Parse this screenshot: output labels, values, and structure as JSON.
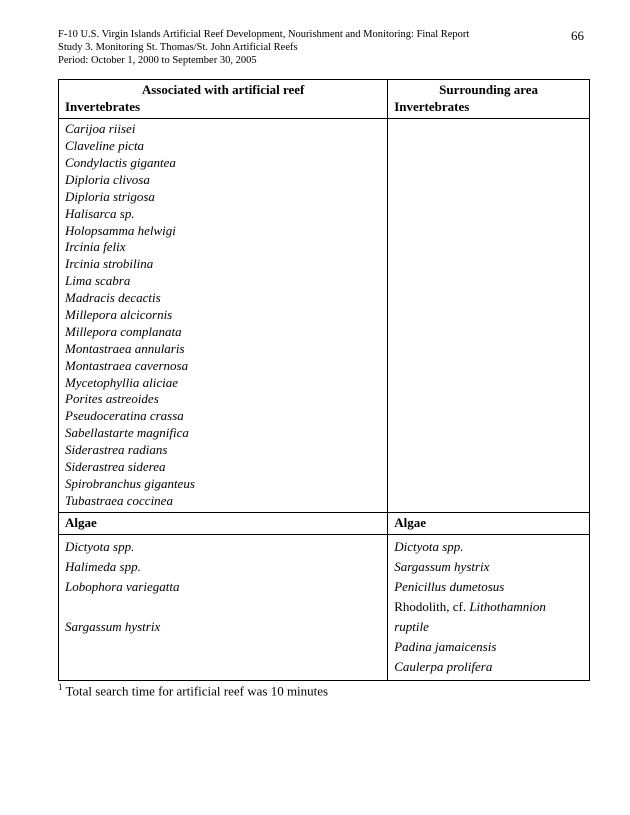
{
  "header": {
    "line1": "F-10 U.S. Virgin Islands Artificial Reef Development, Nourishment and Monitoring: Final Report",
    "line2": "Study 3.  Monitoring St. Thomas/St. John Artificial Reefs",
    "line3": "Period:  October 1, 2000 to September 30, 2005",
    "page_number": "66"
  },
  "table": {
    "head": {
      "left_title": "Associated with artificial reef",
      "left_sub": "Invertebrates",
      "right_title": "Surrounding area",
      "right_sub": "Invertebrates"
    },
    "invertebrates_left": [
      "Carijoa riisei",
      "Claveline picta",
      "Condylactis gigantea",
      "Diploria clivosa",
      "Diploria strigosa",
      "Halisarca sp.",
      "Holopsamma helwigi",
      "Ircinia felix",
      "Ircinia strobilina",
      "Lima scabra",
      "Madracis decactis",
      "Millepora alcicornis",
      "Millepora complanata",
      "Montastraea annularis",
      "Montastraea cavernosa",
      "Mycetophyllia aliciae",
      "Porites astreoides",
      "Pseudoceratina crassa",
      "Sabellastarte magnifica",
      "Siderastrea radians",
      "Siderastrea siderea",
      "Spirobranchus giganteus",
      "Tubastraea coccinea"
    ],
    "algae_header": "Algae",
    "algae_left": [
      "Dictyota spp.",
      "Halimeda spp.",
      "Lobophora variegatta",
      "",
      "Sargassum hystrix"
    ],
    "algae_right": [
      {
        "text": "Dictyota spp.",
        "italic": true
      },
      {
        "text": "Sargassum hystrix",
        "italic": true
      },
      {
        "text": "Penicillus dumetosus",
        "italic": true
      },
      {
        "prefix": "Rhodolith, cf. ",
        "text": "Lithothamnion ruptile",
        "italic": true,
        "mixed": true
      },
      {
        "text": "Padina jamaicensis",
        "italic": true
      },
      {
        "text": "Caulerpa prolifera",
        "italic": true
      }
    ]
  },
  "footnote": {
    "marker": "1",
    "text": " Total search time for artificial reef was 10 minutes"
  }
}
